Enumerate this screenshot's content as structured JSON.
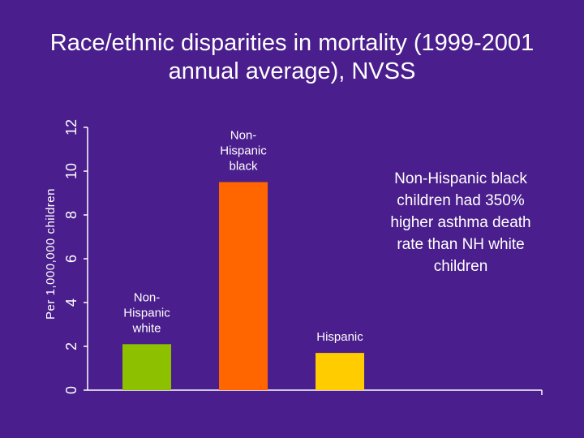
{
  "slide": {
    "title": "Race/ethnic disparities in mortality (1999-2001 annual average), NVSS"
  },
  "annotation": {
    "text": "Non-Hispanic black children had 350% higher asthma death rate than NH white children"
  },
  "colors": {
    "background": "#4a1e8c",
    "axis": "#ffffff",
    "nh_white": "#8dc100",
    "nh_black": "#ff6600",
    "hispanic": "#ffcc00"
  },
  "chart_data": {
    "type": "bar",
    "title": "",
    "xlabel": "",
    "ylabel": "Per 1,000,000 children",
    "ylim": [
      0,
      12
    ],
    "yticks": [
      0,
      2,
      4,
      6,
      8,
      10,
      12
    ],
    "categories": [
      {
        "label_lines": [
          "Non-",
          "Hispanic",
          "white"
        ],
        "label": "Non-Hispanic white",
        "value": 2.1,
        "color_key": "nh_white"
      },
      {
        "label_lines": [
          "Non-",
          "Hispanic",
          "black"
        ],
        "label": "Non-Hispanic black",
        "value": 9.5,
        "color_key": "nh_black"
      },
      {
        "label_lines": [
          "Hispanic"
        ],
        "label": "Hispanic",
        "value": 1.7,
        "color_key": "hispanic"
      }
    ]
  }
}
